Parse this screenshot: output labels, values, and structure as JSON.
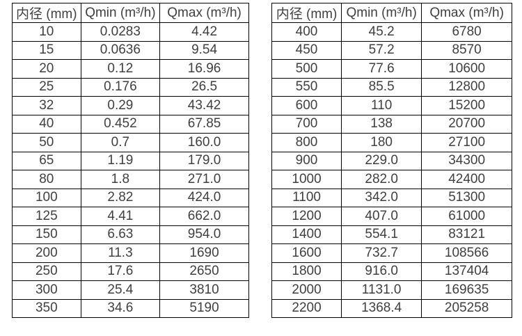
{
  "page": {
    "background": "#ffffff",
    "border_color": "#000000",
    "text_color": "#3f3f3f"
  },
  "tables": [
    {
      "id": "flow-range-table-small-diameters",
      "headers": [
        "内径 (mm)",
        "Qmin (m³/h)",
        "Qmax (m³/h)"
      ],
      "rows": [
        [
          "10",
          "0.0283",
          "4.42"
        ],
        [
          "15",
          "0.0636",
          "9.54"
        ],
        [
          "20",
          "0.12",
          "16.96"
        ],
        [
          "25",
          "0.176",
          "26.5"
        ],
        [
          "32",
          "0.29",
          "43.42"
        ],
        [
          "40",
          "0.452",
          "67.85"
        ],
        [
          "50",
          "0.7",
          "160.0"
        ],
        [
          "65",
          "1.19",
          "179.0"
        ],
        [
          "80",
          "1.8",
          "271.0"
        ],
        [
          "100",
          "2.82",
          "424.0"
        ],
        [
          "125",
          "4.41",
          "662.0"
        ],
        [
          "150",
          "6.63",
          "954.0"
        ],
        [
          "200",
          "11.3",
          "1690"
        ],
        [
          "250",
          "17.6",
          "2650"
        ],
        [
          "300",
          "25.4",
          "3810"
        ],
        [
          "350",
          "34.6",
          "5190"
        ]
      ]
    },
    {
      "id": "flow-range-table-large-diameters",
      "headers": [
        "内径 (mm)",
        "Qmin (m³/h)",
        "Qmax (m³/h)"
      ],
      "rows": [
        [
          "400",
          "45.2",
          "6780"
        ],
        [
          "450",
          "57.2",
          "8570"
        ],
        [
          "500",
          "77.6",
          "10600"
        ],
        [
          "550",
          "85.5",
          "12800"
        ],
        [
          "600",
          "110",
          "15200"
        ],
        [
          "700",
          "138",
          "20700"
        ],
        [
          "800",
          "180",
          "27100"
        ],
        [
          "900",
          "229.0",
          "34300"
        ],
        [
          "1000",
          "282.0",
          "42400"
        ],
        [
          "1100",
          "342.0",
          "51300"
        ],
        [
          "1200",
          "407.0",
          "61000"
        ],
        [
          "1400",
          "554.1",
          "83121"
        ],
        [
          "1600",
          "732.7",
          "108566"
        ],
        [
          "1800",
          "916.0",
          "137404"
        ],
        [
          "2000",
          "1131.0",
          "169635"
        ],
        [
          "2200",
          "1368.4",
          "205258"
        ]
      ]
    }
  ]
}
